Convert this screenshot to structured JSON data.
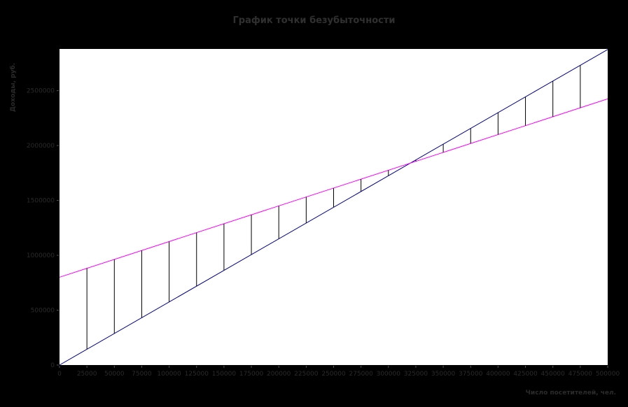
{
  "figure": {
    "title": "График точки безубыточности",
    "xlabel": "Число посетителей, чел.",
    "ylabel": "Доходы, руб.",
    "background_color": "#000000",
    "plot_background_color": "#ffffff",
    "text_color": "#2b2b2b",
    "tick_color": "#555555"
  },
  "chart_data": {
    "type": "line",
    "title": "График точки безубыточности",
    "xlabel": "Число посетителей, чел.",
    "ylabel": "Доходы, руб.",
    "xlim": [
      0,
      500000
    ],
    "ylim": [
      0,
      2880000
    ],
    "grid": false,
    "legend": "none",
    "x_ticks": [
      0,
      25000,
      50000,
      75000,
      100000,
      125000,
      150000,
      175000,
      200000,
      225000,
      250000,
      275000,
      300000,
      325000,
      350000,
      375000,
      400000,
      425000,
      450000,
      475000,
      500000
    ],
    "x_tick_labels": [
      "0",
      "25000",
      "50000",
      "75000",
      "100000",
      "125000",
      "150000",
      "175000",
      "200000",
      "225000",
      "250000",
      "275000",
      "300000",
      "325000",
      "350000",
      "375000",
      "400000",
      "425000",
      "450000",
      "475000",
      "500000"
    ],
    "y_ticks": [
      0,
      500000,
      1000000,
      1500000,
      2000000,
      2500000
    ],
    "y_tick_labels": [
      "0",
      "500000",
      "1000000",
      "1500000",
      "2000000",
      "2500000"
    ],
    "series": [
      {
        "name": "revenue-line",
        "color": "#000080",
        "x": [
          0,
          500000
        ],
        "y": [
          0,
          2875000
        ]
      },
      {
        "name": "total-cost-line",
        "color": "#ff00ff",
        "x": [
          0,
          500000
        ],
        "y": [
          800000,
          2425000
        ]
      }
    ],
    "connectors": {
      "color": "#000000",
      "x_values": [
        25000,
        50000,
        75000,
        100000,
        125000,
        150000,
        175000,
        200000,
        225000,
        250000,
        275000,
        300000,
        325000,
        350000,
        375000,
        400000,
        425000,
        450000,
        475000
      ]
    }
  }
}
